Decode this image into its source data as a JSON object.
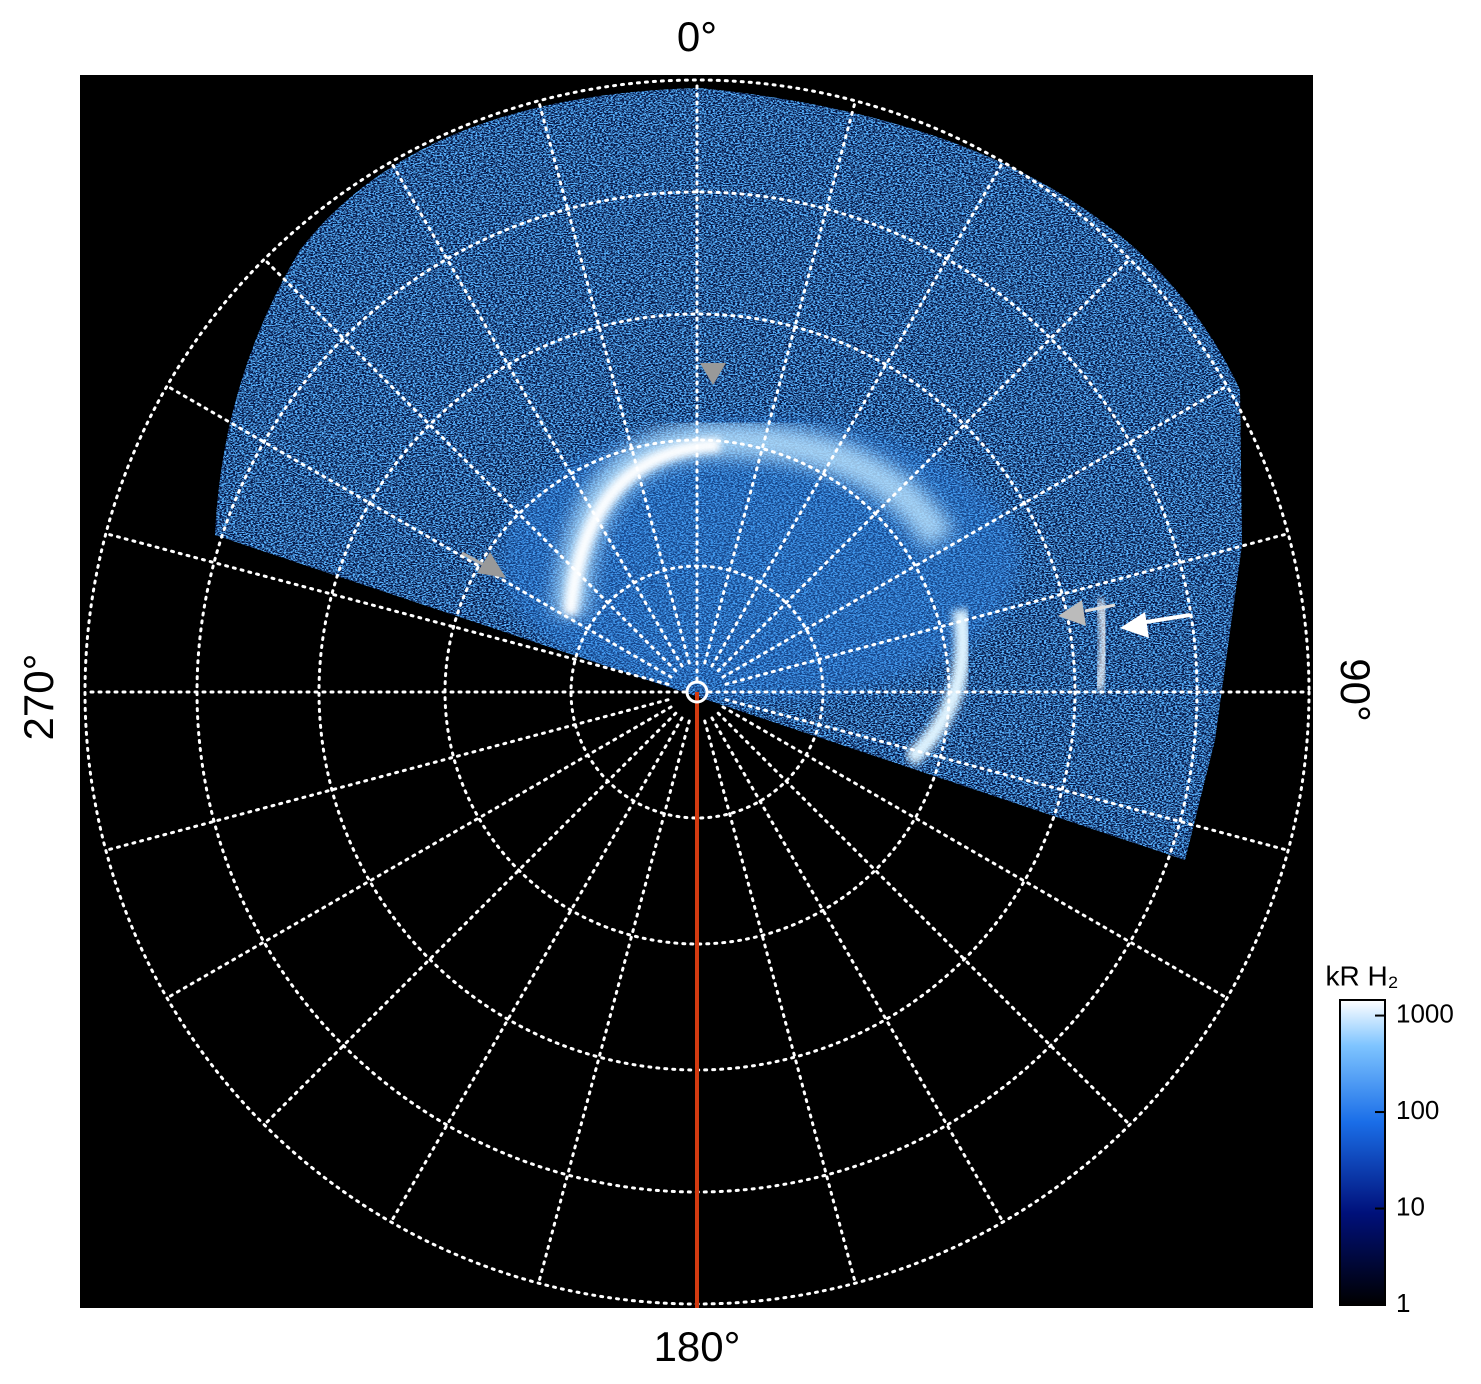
{
  "image": {
    "angle_labels": {
      "top": "0°",
      "right": "90°",
      "bottom": "180°",
      "left": "270°"
    }
  },
  "colorbar": {
    "label": "kR H₂",
    "lim": [
      1,
      1450
    ],
    "log": true,
    "ticks": [
      1,
      10,
      100,
      1000
    ]
  }
}
